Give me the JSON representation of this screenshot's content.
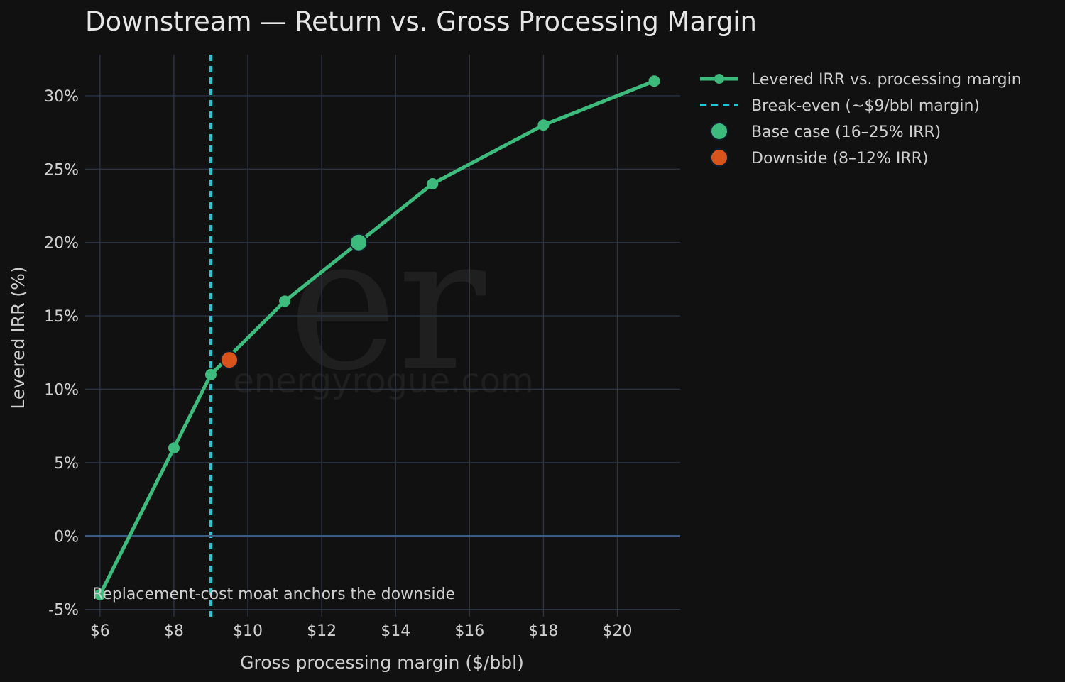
{
  "colors": {
    "background": "#111111",
    "grid": "#2a3445",
    "zero_line": "#3d5a80",
    "text": "#cfcfcf",
    "title": "#e6e6e6",
    "line": "#3dbb7c",
    "breakeven": "#1fc8d4",
    "base_marker": "#3dbb7c",
    "downside_marker": "#d9541a",
    "watermark": "#1f1f1f"
  },
  "watermark": {
    "logo": "er",
    "site": "energyrogue.com"
  },
  "chart_data": {
    "type": "line",
    "title": "Downstream — Return vs. Gross Processing Margin",
    "xlabel": "Gross processing margin ($/bbl)",
    "ylabel": "Levered IRR (%)",
    "xlim": [
      5.6,
      21.7
    ],
    "ylim": [
      -5.5,
      32.8
    ],
    "x_ticks": [
      6,
      8,
      10,
      12,
      14,
      16,
      18,
      20
    ],
    "x_tick_labels": [
      "$6",
      "$8",
      "$10",
      "$12",
      "$14",
      "$16",
      "$18",
      "$20"
    ],
    "y_ticks": [
      -5,
      0,
      5,
      10,
      15,
      20,
      25,
      30
    ],
    "y_tick_labels": [
      "-5%",
      "0%",
      "5%",
      "10%",
      "15%",
      "20%",
      "25%",
      "30%"
    ],
    "grid": true,
    "legend_position": "outside-top-right",
    "series": [
      {
        "name": "Levered IRR vs. processing margin",
        "x": [
          6,
          8,
          9,
          11,
          13,
          15,
          18,
          21
        ],
        "y": [
          -4,
          6,
          11,
          16,
          20,
          24,
          28,
          31
        ]
      }
    ],
    "reference_lines": [
      {
        "name": "Break-even (~$9/bbl margin)",
        "orientation": "vertical",
        "x": 9
      },
      {
        "name": "",
        "orientation": "horizontal",
        "y": 0
      }
    ],
    "highlight_points": [
      {
        "name": "Base case (16–25% IRR)",
        "x": 13,
        "y": 20
      },
      {
        "name": "Downside (8–12% IRR)",
        "x": 9.5,
        "y": 12
      }
    ],
    "annotations": [
      {
        "text": "Replacement-cost moat anchors the downside",
        "x": 5.5,
        "y": -3.9
      }
    ]
  }
}
